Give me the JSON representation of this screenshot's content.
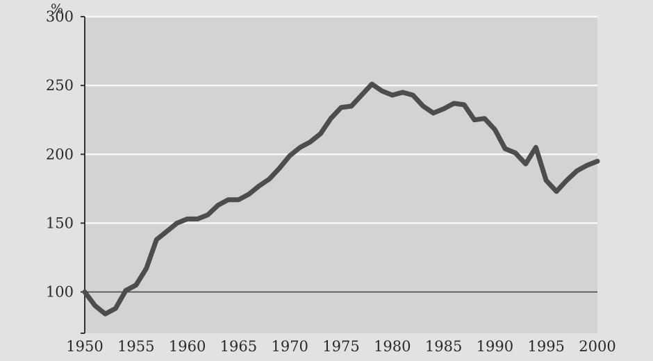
{
  "chart_data": {
    "type": "line",
    "title": "",
    "xlabel": "",
    "ylabel": "%",
    "xlim": [
      1950,
      2000
    ],
    "ylim": [
      70,
      300
    ],
    "x_ticks": [
      "1950",
      "1955",
      "1960",
      "1965",
      "1970",
      "1975",
      "1980",
      "1985",
      "1990",
      "1995",
      "2000"
    ],
    "y_ticks": [
      "100",
      "150",
      "200",
      "250",
      "300"
    ],
    "grid": true,
    "reference_line": 100,
    "colors": {
      "plot_background": "#d3d3d3",
      "page_background": "#e2e2e2",
      "gridline": "#f7f7f7",
      "line": "#4d4d4d",
      "reference_line": "#4a4a4a",
      "axis": "#333333"
    },
    "series": [
      {
        "x": [
          1950,
          1951,
          1952,
          1953,
          1954,
          1955,
          1956,
          1957,
          1958,
          1959,
          1960,
          1961,
          1962,
          1963,
          1964,
          1965,
          1966,
          1967,
          1968,
          1969,
          1970,
          1971,
          1972,
          1973,
          1974,
          1975,
          1976,
          1977,
          1978,
          1979,
          1980,
          1981,
          1982,
          1983,
          1984,
          1985,
          1986,
          1987,
          1988,
          1989,
          1990,
          1991,
          1992,
          1993,
          1994,
          1995,
          1996,
          1997,
          1998,
          1999,
          2000
        ],
        "values": [
          100,
          90,
          84,
          88,
          101,
          105,
          117,
          138,
          144,
          150,
          153,
          153,
          156,
          163,
          167,
          167,
          171,
          177,
          182,
          190,
          199,
          205,
          209,
          215,
          226,
          234,
          235,
          243,
          251,
          246,
          243,
          245,
          243,
          235,
          230,
          233,
          237,
          236,
          225,
          226,
          218,
          204,
          201,
          193,
          205,
          181,
          173,
          181,
          188,
          192,
          195
        ]
      }
    ]
  }
}
